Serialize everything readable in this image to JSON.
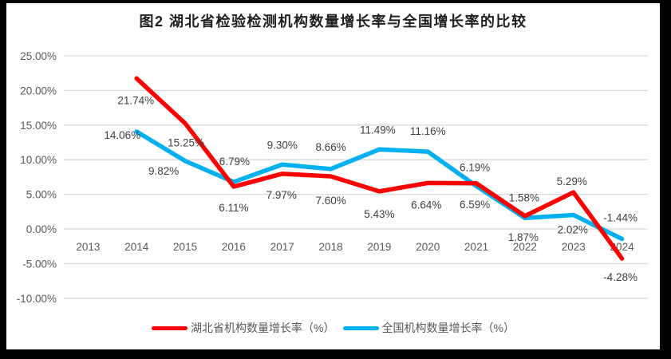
{
  "chart_data": {
    "type": "line",
    "title": "图2 湖北省检验检测机构数量增长率与全国增长率的比较",
    "categories": [
      "2013",
      "2014",
      "2015",
      "2016",
      "2017",
      "2018",
      "2019",
      "2020",
      "2021",
      "2022",
      "2023",
      "2024"
    ],
    "series": [
      {
        "name": "湖北省机构数量增长率（%）",
        "color": "#FF0000",
        "values": [
          null,
          21.74,
          15.25,
          6.11,
          7.97,
          7.6,
          5.43,
          6.64,
          6.59,
          1.87,
          5.29,
          -4.28
        ]
      },
      {
        "name": "全国机构数量增长率（%）",
        "color": "#00B0F0",
        "values": [
          null,
          14.06,
          9.82,
          6.79,
          9.3,
          8.66,
          11.49,
          11.16,
          6.19,
          1.58,
          2.02,
          -1.44
        ]
      }
    ],
    "data_label_format": "0.00%",
    "y_axis": {
      "min": -10,
      "max": 25,
      "step": 5,
      "tick_labels": [
        "25.00%",
        "20.00%",
        "15.00%",
        "10.00%",
        "5.00%",
        "0.00%",
        "-5.00%",
        "-10.00%"
      ]
    },
    "grid": true,
    "legend_position": "bottom",
    "colors": {
      "gridline": "#D9D9D9",
      "axis_text": "#595959",
      "data_label_text": "#3F3F3F",
      "title_text": "#1F1F1F",
      "plot_background": "#FFFFFF",
      "frame_background": "#000000"
    }
  }
}
